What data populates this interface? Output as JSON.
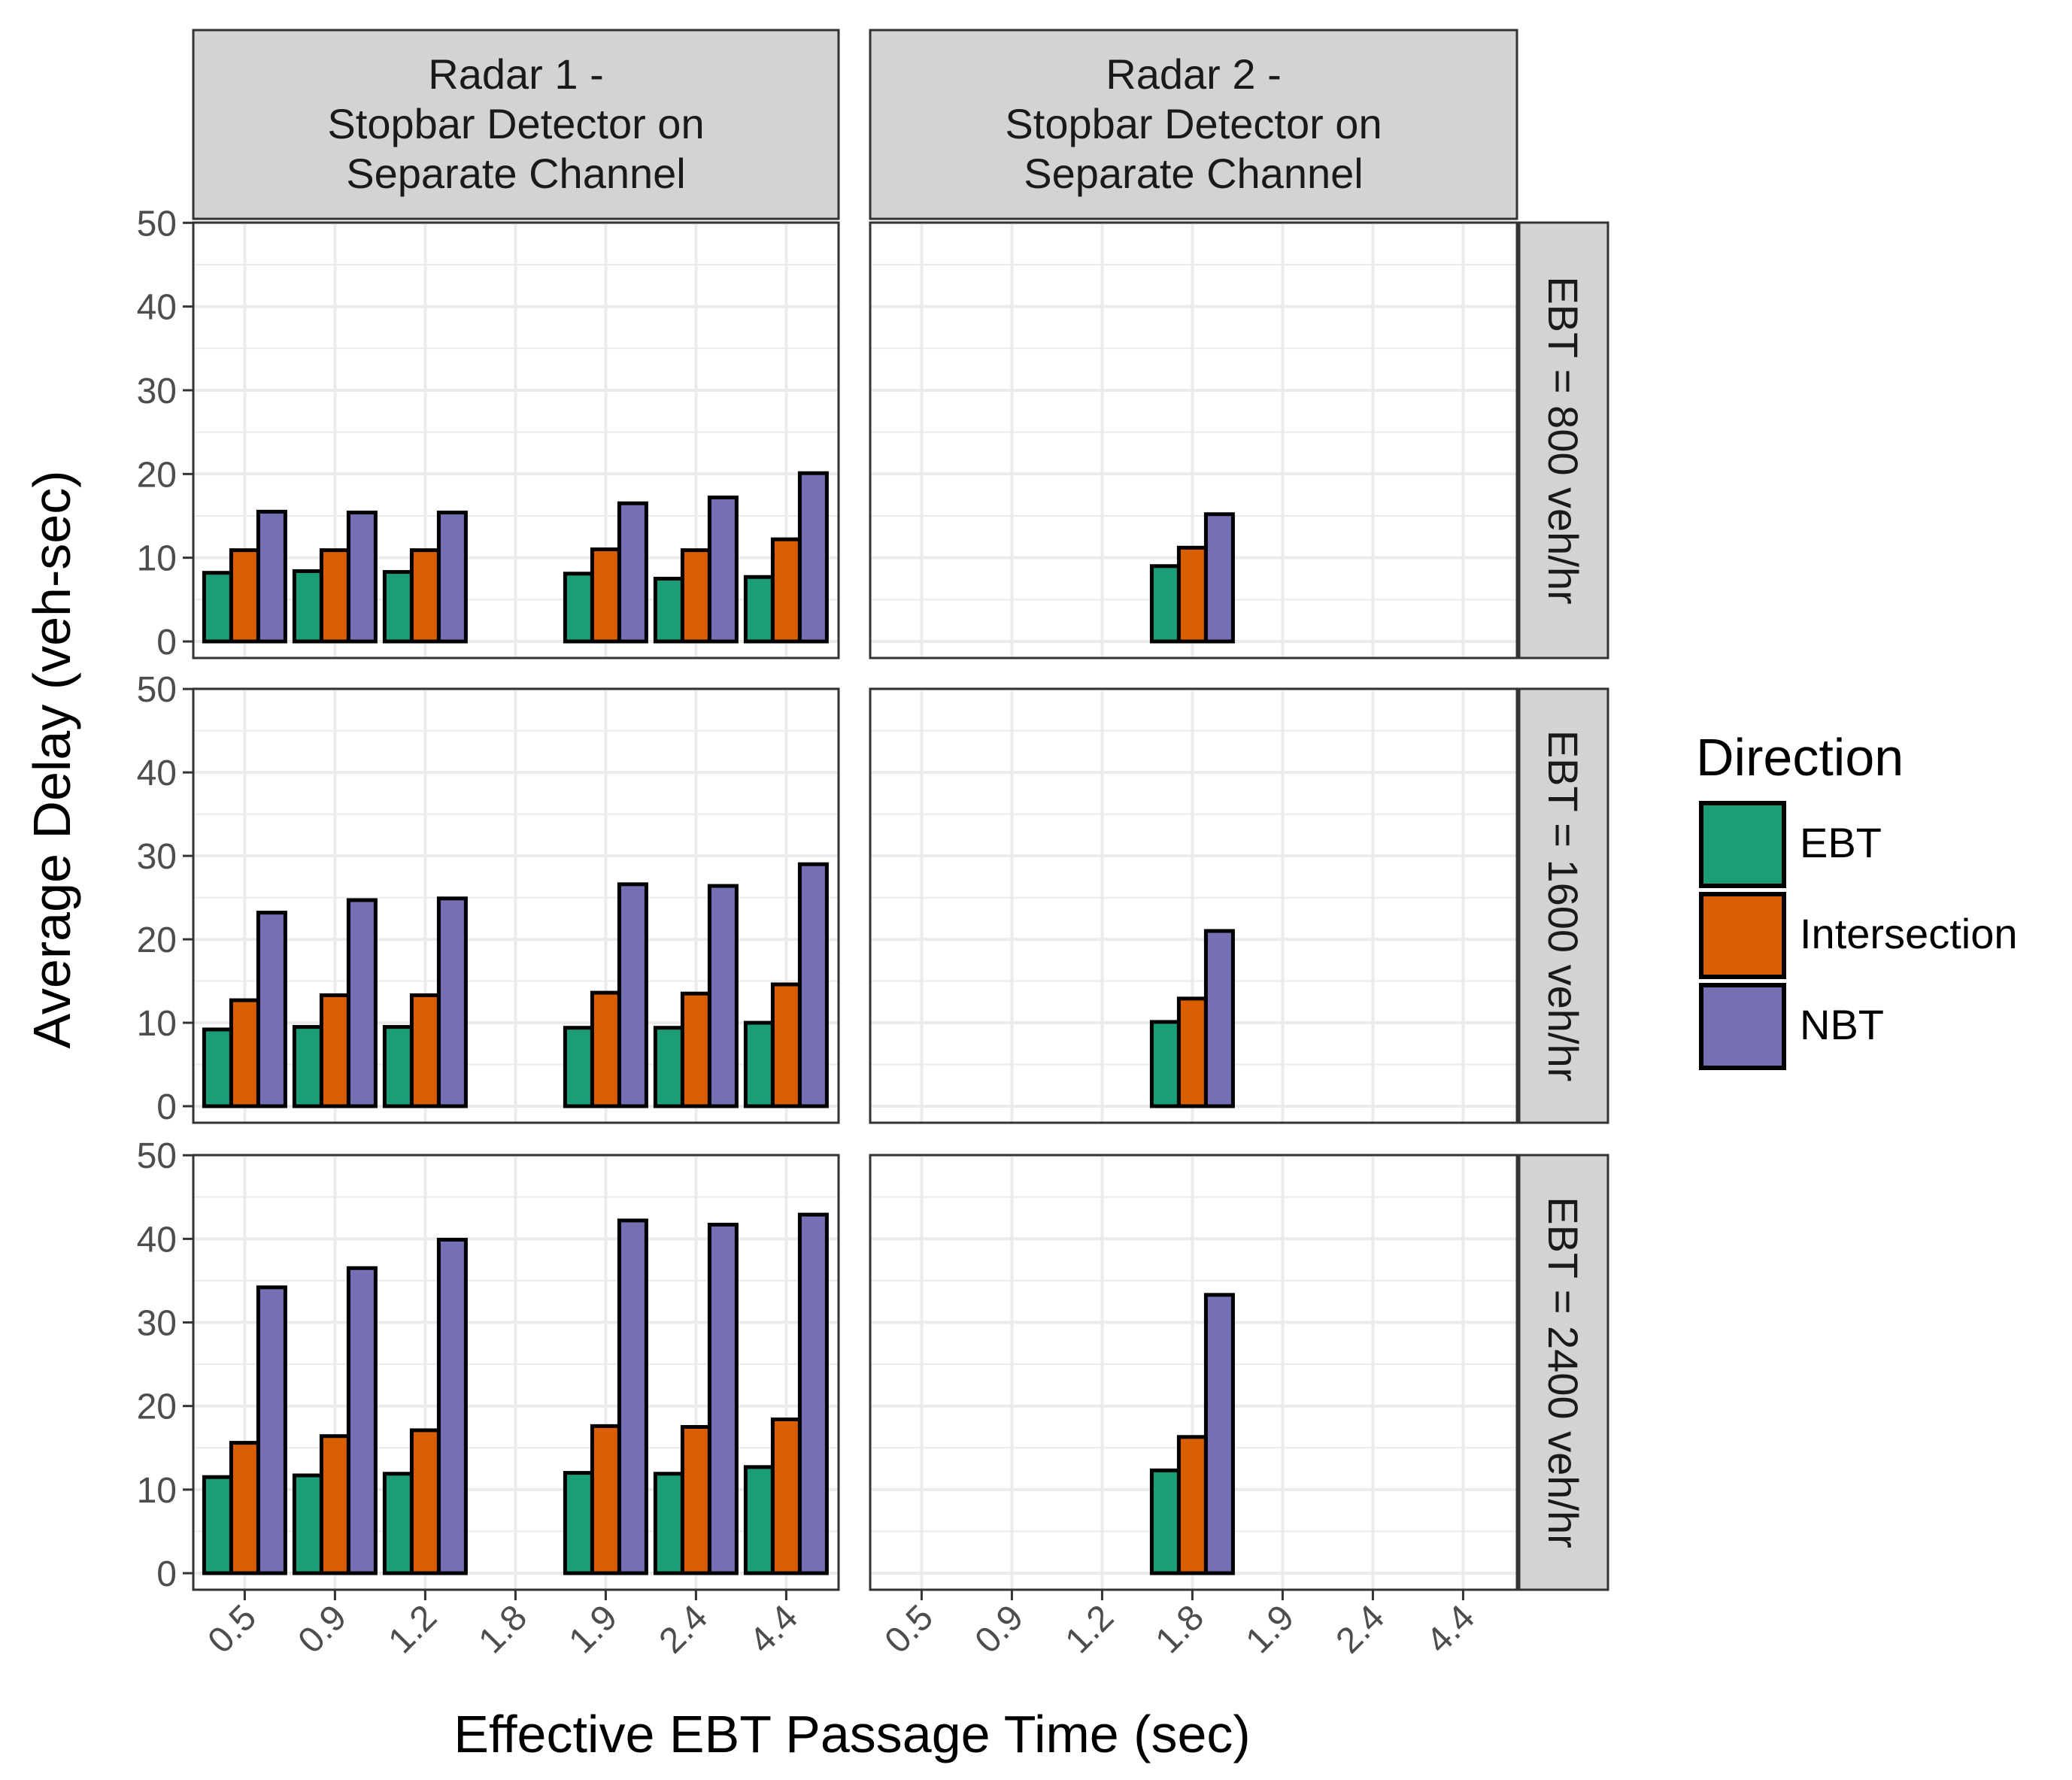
{
  "chart_data": {
    "type": "bar",
    "xlabel": "Effective EBT Passage Time (sec)",
    "ylabel": "Average Delay (veh-sec)",
    "ylim": [
      0,
      52
    ],
    "yticks": [
      0,
      10,
      20,
      30,
      40,
      50
    ],
    "grid": true,
    "legend": {
      "title": "Direction",
      "position": "right",
      "entries": [
        "EBT",
        "Intersection",
        "NBT"
      ]
    },
    "colors": {
      "EBT": "#1b9e77",
      "Intersection": "#d95f02",
      "NBT": "#7570b3",
      "strip_bg": "#d3d3d3",
      "grid": "#ebebeb"
    },
    "categories": [
      "0.5",
      "0.9",
      "1.2",
      "1.8",
      "1.9",
      "2.4",
      "4.4"
    ],
    "columns": [
      "Radar 1 -\nStopbar Detector on\nSeparate Channel",
      "Radar 2 -\nStopbar Detector on\nSeparate Channel"
    ],
    "rows": [
      "EBT = 800 veh/hr",
      "EBT = 1600 veh/hr",
      "EBT = 2400 veh/hr"
    ],
    "panels": [
      {
        "column": 0,
        "row": 0,
        "series": [
          {
            "name": "EBT",
            "values": [
              8.2,
              8.4,
              8.3,
              null,
              8.1,
              7.5,
              7.7
            ]
          },
          {
            "name": "Intersection",
            "values": [
              10.9,
              10.9,
              10.9,
              null,
              11.0,
              10.9,
              12.2
            ]
          },
          {
            "name": "NBT",
            "values": [
              15.5,
              15.4,
              15.4,
              null,
              16.5,
              17.2,
              20.1
            ]
          }
        ]
      },
      {
        "column": 1,
        "row": 0,
        "series": [
          {
            "name": "EBT",
            "values": [
              null,
              null,
              null,
              9.0,
              null,
              null,
              null
            ]
          },
          {
            "name": "Intersection",
            "values": [
              null,
              null,
              null,
              11.2,
              null,
              null,
              null
            ]
          },
          {
            "name": "NBT",
            "values": [
              null,
              null,
              null,
              15.2,
              null,
              null,
              null
            ]
          }
        ]
      },
      {
        "column": 0,
        "row": 1,
        "series": [
          {
            "name": "EBT",
            "values": [
              9.2,
              9.5,
              9.5,
              null,
              9.4,
              9.4,
              10.0
            ]
          },
          {
            "name": "Intersection",
            "values": [
              12.7,
              13.3,
              13.3,
              null,
              13.6,
              13.5,
              14.6
            ]
          },
          {
            "name": "NBT",
            "values": [
              23.2,
              24.7,
              24.9,
              null,
              26.6,
              26.4,
              29.0
            ]
          }
        ]
      },
      {
        "column": 1,
        "row": 1,
        "series": [
          {
            "name": "EBT",
            "values": [
              null,
              null,
              null,
              10.1,
              null,
              null,
              null
            ]
          },
          {
            "name": "Intersection",
            "values": [
              null,
              null,
              null,
              12.9,
              null,
              null,
              null
            ]
          },
          {
            "name": "NBT",
            "values": [
              null,
              null,
              null,
              21.0,
              null,
              null,
              null
            ]
          }
        ]
      },
      {
        "column": 0,
        "row": 2,
        "series": [
          {
            "name": "EBT",
            "values": [
              11.5,
              11.7,
              11.9,
              null,
              12.0,
              11.9,
              12.7
            ]
          },
          {
            "name": "Intersection",
            "values": [
              15.6,
              16.4,
              17.1,
              null,
              17.6,
              17.5,
              18.4
            ]
          },
          {
            "name": "NBT",
            "values": [
              34.2,
              36.5,
              39.9,
              null,
              42.2,
              41.7,
              42.9
            ]
          }
        ]
      },
      {
        "column": 1,
        "row": 2,
        "series": [
          {
            "name": "EBT",
            "values": [
              null,
              null,
              null,
              12.3,
              null,
              null,
              null
            ]
          },
          {
            "name": "Intersection",
            "values": [
              null,
              null,
              null,
              16.3,
              null,
              null,
              null
            ]
          },
          {
            "name": "NBT",
            "values": [
              null,
              null,
              null,
              33.3,
              null,
              null,
              null
            ]
          }
        ]
      }
    ]
  }
}
